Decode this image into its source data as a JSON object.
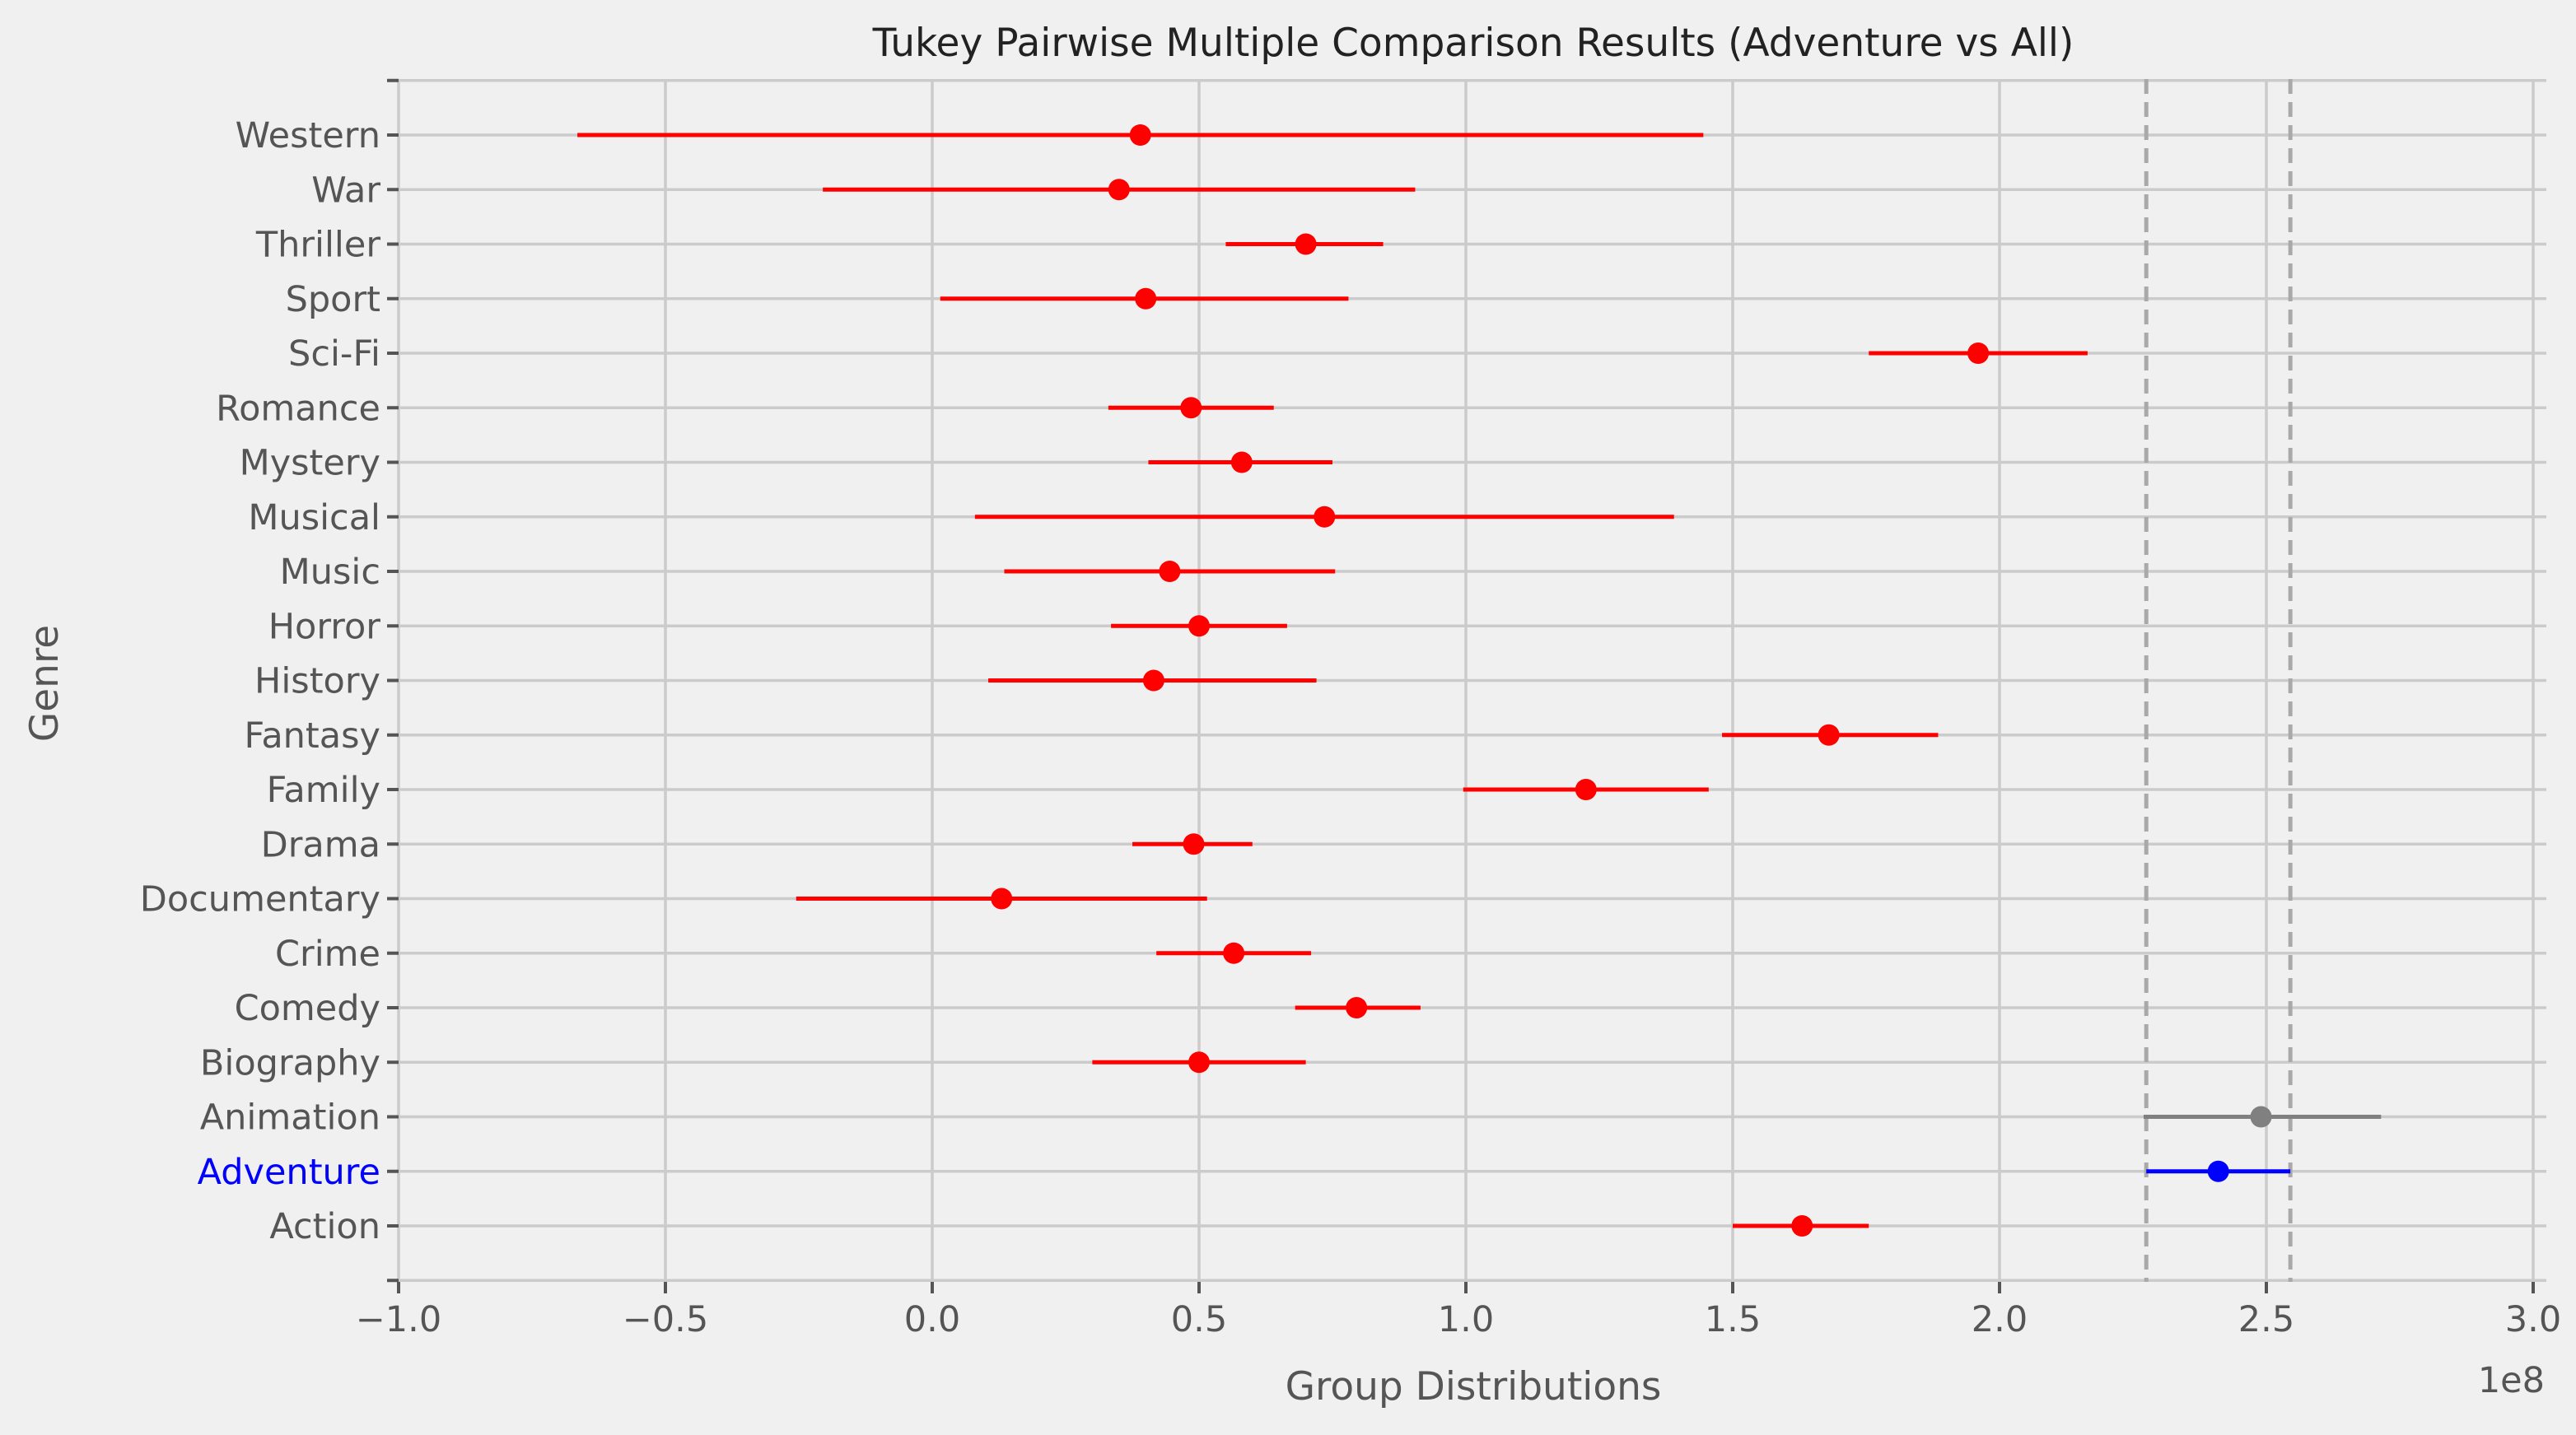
{
  "chart_data": {
    "type": "scatter",
    "title": "Tukey Pairwise Multiple Comparison Results (Adventure vs All)",
    "xlabel": "Group Distributions",
    "ylabel": "Genre",
    "x_offset_label": "1e8",
    "xlim": [
      -1.0,
      3.05
    ],
    "xticks": [
      -1.0,
      -0.5,
      0.0,
      0.5,
      1.0,
      1.5,
      2.0,
      2.5,
      3.0
    ],
    "xtick_labels": [
      "−1.0",
      "−0.5",
      "0.0",
      "0.5",
      "1.0",
      "1.5",
      "2.0",
      "2.5",
      "3.0"
    ],
    "grid": true,
    "reference_lines": [
      2.275,
      2.545
    ],
    "highlight": "Adventure",
    "colors": {
      "significant": "#ff0000",
      "highlight": "#0000ff",
      "not_significant": "#808080",
      "reference": "#a9a9a9",
      "background": "#f0f0f0"
    },
    "groups": [
      {
        "name": "Action",
        "mean": 1.63,
        "low": 1.5,
        "high": 1.755,
        "status": "significant"
      },
      {
        "name": "Adventure",
        "mean": 2.41,
        "low": 2.275,
        "high": 2.545,
        "status": "highlight"
      },
      {
        "name": "Animation",
        "mean": 2.49,
        "low": 2.27,
        "high": 2.715,
        "status": "not_significant"
      },
      {
        "name": "Biography",
        "mean": 0.5,
        "low": 0.3,
        "high": 0.7,
        "status": "significant"
      },
      {
        "name": "Comedy",
        "mean": 0.795,
        "low": 0.68,
        "high": 0.915,
        "status": "significant"
      },
      {
        "name": "Crime",
        "mean": 0.565,
        "low": 0.42,
        "high": 0.71,
        "status": "significant"
      },
      {
        "name": "Documentary",
        "mean": 0.13,
        "low": -0.255,
        "high": 0.515,
        "status": "significant"
      },
      {
        "name": "Drama",
        "mean": 0.49,
        "low": 0.375,
        "high": 0.6,
        "status": "significant"
      },
      {
        "name": "Family",
        "mean": 1.225,
        "low": 0.995,
        "high": 1.455,
        "status": "significant"
      },
      {
        "name": "Fantasy",
        "mean": 1.68,
        "low": 1.48,
        "high": 1.885,
        "status": "significant"
      },
      {
        "name": "History",
        "mean": 0.415,
        "low": 0.105,
        "high": 0.72,
        "status": "significant"
      },
      {
        "name": "Horror",
        "mean": 0.5,
        "low": 0.335,
        "high": 0.665,
        "status": "significant"
      },
      {
        "name": "Music",
        "mean": 0.445,
        "low": 0.135,
        "high": 0.755,
        "status": "significant"
      },
      {
        "name": "Musical",
        "mean": 0.735,
        "low": 0.08,
        "high": 1.39,
        "status": "significant"
      },
      {
        "name": "Mystery",
        "mean": 0.58,
        "low": 0.405,
        "high": 0.75,
        "status": "significant"
      },
      {
        "name": "Romance",
        "mean": 0.485,
        "low": 0.33,
        "high": 0.64,
        "status": "significant"
      },
      {
        "name": "Sci-Fi",
        "mean": 1.96,
        "low": 1.755,
        "high": 2.165,
        "status": "significant"
      },
      {
        "name": "Sport",
        "mean": 0.4,
        "low": 0.015,
        "high": 0.78,
        "status": "significant"
      },
      {
        "name": "Thriller",
        "mean": 0.7,
        "low": 0.55,
        "high": 0.845,
        "status": "significant"
      },
      {
        "name": "War",
        "mean": 0.35,
        "low": -0.205,
        "high": 0.905,
        "status": "significant"
      },
      {
        "name": "Western",
        "mean": 0.39,
        "low": -0.665,
        "high": 1.445,
        "status": "significant"
      }
    ]
  }
}
